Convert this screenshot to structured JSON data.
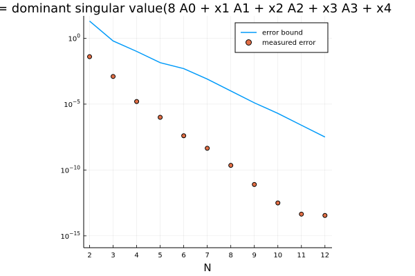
{
  "chart_data": {
    "type": "line+scatter",
    "title": "= dominant singular value(8 A0 + x1 A1 + x2 A2 + x3 A3 + x4",
    "xlabel": "N",
    "ylabel": "",
    "yscale": "log10",
    "xlim": [
      1.75,
      12.3
    ],
    "ylim_log10": [
      -15.9,
      1.7
    ],
    "x_ticks": [
      2,
      3,
      4,
      5,
      6,
      7,
      8,
      9,
      10,
      11,
      12
    ],
    "y_ticks": [
      {
        "exp": 0,
        "base": "10",
        "sup": "0"
      },
      {
        "exp": -5,
        "base": "10",
        "sup": "−5"
      },
      {
        "exp": -10,
        "base": "10",
        "sup": "−10"
      },
      {
        "exp": -15,
        "base": "10",
        "sup": "−15"
      }
    ],
    "grid": true,
    "legend_position": "top-right",
    "series": [
      {
        "name": "error bound",
        "kind": "line",
        "color": "#009af9",
        "x": [
          2,
          3,
          4,
          5,
          6,
          7,
          8,
          9,
          10,
          11,
          12
        ],
        "y_log10": [
          1.3,
          -0.2,
          -1.0,
          -1.85,
          -2.3,
          -3.1,
          -4.0,
          -4.9,
          -5.7,
          -6.6,
          -7.5
        ]
      },
      {
        "name": "measured error",
        "kind": "scatter",
        "color": "#e26f46",
        "x": [
          2,
          3,
          4,
          5,
          6,
          7,
          8,
          9,
          10,
          11,
          12
        ],
        "y_log10": [
          -1.4,
          -2.9,
          -4.8,
          -6.0,
          -7.4,
          -8.35,
          -9.65,
          -11.1,
          -12.5,
          -13.35,
          -13.45
        ]
      }
    ]
  }
}
